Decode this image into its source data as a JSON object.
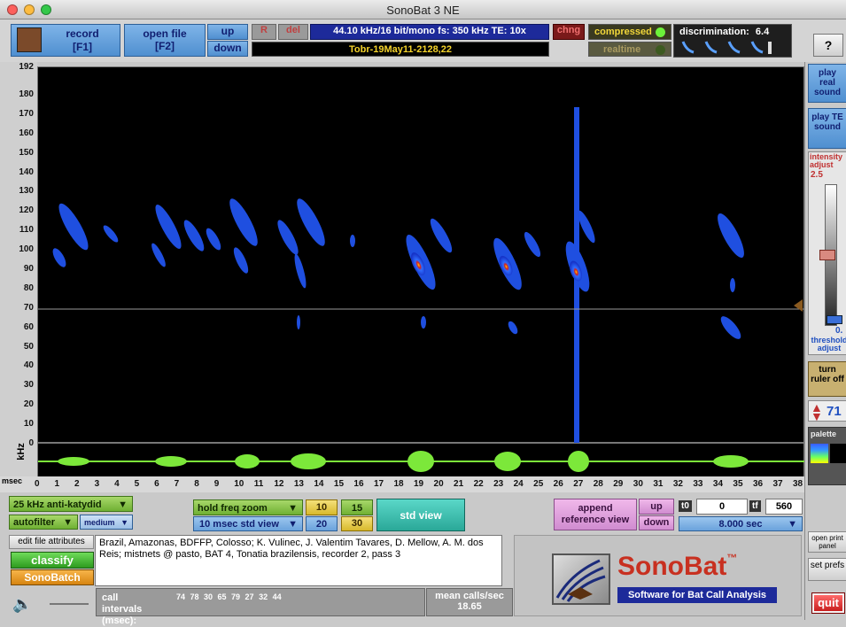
{
  "window": {
    "title": "SonoBat 3 NE"
  },
  "toolbar": {
    "record_label": "record",
    "record_key": "[F1]",
    "open_file_label": "open file",
    "open_file_key": "[F2]",
    "up": "up",
    "down": "down",
    "r_label": "R",
    "del_label": "del",
    "format_info": "44.10 kHz/16 bit/mono  fs: 350 kHz  TE: 10x",
    "file_name": "Tobr-19May11-2128,22",
    "chng_label": "chng",
    "compressed_label": "compressed",
    "realtime_label": "realtime",
    "discrimination_label": "discrimination:",
    "discrimination_value": "6.4",
    "help_label": "?"
  },
  "spectrogram": {
    "y_unit": "kHz",
    "y_ticks": [
      "192",
      "180",
      "170",
      "160",
      "150",
      "140",
      "130",
      "120",
      "110",
      "100",
      "90",
      "80",
      "70",
      "60",
      "50",
      "40",
      "30",
      "20",
      "10",
      "0"
    ],
    "x_unit": "msec",
    "x_ticks": [
      "0",
      "1",
      "2",
      "3",
      "4",
      "5",
      "6",
      "7",
      "8",
      "9",
      "10",
      "11",
      "12",
      "13",
      "14",
      "15",
      "16",
      "17",
      "18",
      "19",
      "20",
      "21",
      "22",
      "23",
      "24",
      "25",
      "26",
      "27",
      "28",
      "29",
      "30",
      "31",
      "32",
      "33",
      "34",
      "35",
      "36",
      "37",
      "38"
    ]
  },
  "right_panel": {
    "play_real": "play real sound",
    "play_te": "play TE sound",
    "intensity_label": "intensity adjust",
    "intensity_value": "2.5",
    "threshold_value": "0.",
    "threshold_label": "threshold adjust",
    "turn_ruler": "turn ruler off",
    "ruler_value": "71",
    "palette_label": "palette",
    "open_print": "open print panel",
    "set_prefs": "set prefs",
    "quit": "quit"
  },
  "controls": {
    "filter": "25 kHz anti-katydid",
    "autofilter": "autofilter",
    "medium": "medium",
    "hold_freq": "hold freq zoom",
    "std_view_sel": "10 msec std view",
    "z10": "10",
    "z15": "15",
    "z20": "20",
    "z30": "30",
    "std_view_btn": "std view",
    "append": "append reference view",
    "up": "up",
    "down": "down",
    "t0_label": "t0",
    "t0_value": "0",
    "tf_label": "tf",
    "tf_value": "560",
    "duration": "8.000 sec"
  },
  "bottom": {
    "edit_attr": "edit file attributes",
    "classify": "classify",
    "sonobatch": "SonoBatch",
    "attributes": "Brazil, Amazonas, BDFFP, Colosso; K. Vulinec, J. Valentim Tavares, D. Mellow, A. M. dos Reis; mistnets @ pasto, BAT 4,  Tonatia brazilensis, recorder 2, pass 3",
    "call_intervals_label": "call intervals (msec):",
    "call_intervals": "74  78  30  65  79  27  32  44",
    "mean_calls_label": "mean calls/sec",
    "mean_calls_value": "18.65",
    "logo": "SonoBat",
    "logo_tm": "™",
    "tagline": "Software for Bat Call Analysis"
  },
  "colors": {
    "accent_blue": "#4f8fd0",
    "call_blue": "#1f4fe0",
    "wave_green": "#7ce83a"
  }
}
